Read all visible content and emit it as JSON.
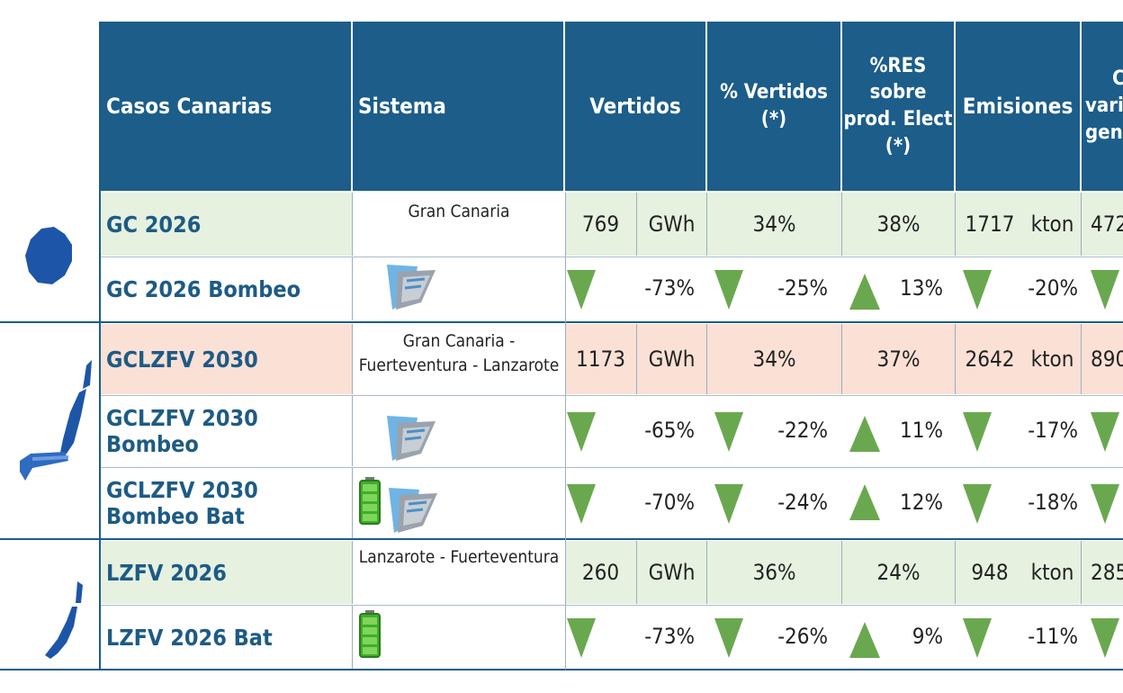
{
  "columns": {
    "casos": "Casos Canarias",
    "sistema": "Sistema",
    "vertidos": "Vertidos",
    "pct_vertidos": "% Vertidos (*)",
    "res_line1": "%RES",
    "res_line2": "sobre",
    "res_line3": "prod. Elect",
    "res_line4": "(*)",
    "emisiones": "Emisiones",
    "last_line1": "C",
    "last_line2": "vari",
    "last_line3": "gene"
  },
  "systems": {
    "gc": "Gran Canaria",
    "gclzfv_1": "Gran Canaria -",
    "gclzfv_2": "Fuerteventura - Lanzarote",
    "lzfv": "Lanzarote - Fuerteventura"
  },
  "rows": [
    {
      "caso": "GC 2026",
      "vert": "769",
      "vert_unit": "GWh",
      "pct_vert": "34%",
      "res": "38%",
      "emis": "1717",
      "emis_unit": "kton",
      "last": "472"
    },
    {
      "caso": "GC 2026 Bombeo",
      "vert_delta": "-73%",
      "pct_vert_delta": "-25%",
      "res_delta": "13%",
      "emis_delta": "-20%"
    },
    {
      "caso": "GCLZFV 2030",
      "vert": "1173",
      "vert_unit": "GWh",
      "pct_vert": "34%",
      "res": "37%",
      "emis": "2642",
      "emis_unit": "kton",
      "last": "890"
    },
    {
      "caso": "GCLZFV 2030 Bombeo",
      "vert_delta": "-65%",
      "pct_vert_delta": "-22%",
      "res_delta": "11%",
      "emis_delta": "-17%"
    },
    {
      "caso": "GCLZFV 2030 Bombeo Bat",
      "vert_delta": "-70%",
      "pct_vert_delta": "-24%",
      "res_delta": "12%",
      "emis_delta": "-18%"
    },
    {
      "caso": "LZFV 2026",
      "vert": "260",
      "vert_unit": "GWh",
      "pct_vert": "36%",
      "res": "24%",
      "emis": "948",
      "emis_unit": "kton",
      "last": "285"
    },
    {
      "caso": "LZFV  2026 Bat",
      "vert_delta": "-73%",
      "pct_vert_delta": "-26%",
      "res_delta": "9%",
      "emis_delta": "-11%"
    }
  ],
  "colors": {
    "header": "#1c5d8a",
    "base_gc": "#e6f1e0",
    "base_gclzfv": "#fbe0d6",
    "triangle": "#6aa84f",
    "case_text": "#1d5b85"
  },
  "icons": [
    "gran-canaria-map-icon",
    "gclzfv-map-icon",
    "lzfv-map-icon",
    "pumped-hydro-dam-icon",
    "battery-icon",
    "arrow-down-triangle-icon",
    "arrow-up-triangle-icon"
  ]
}
